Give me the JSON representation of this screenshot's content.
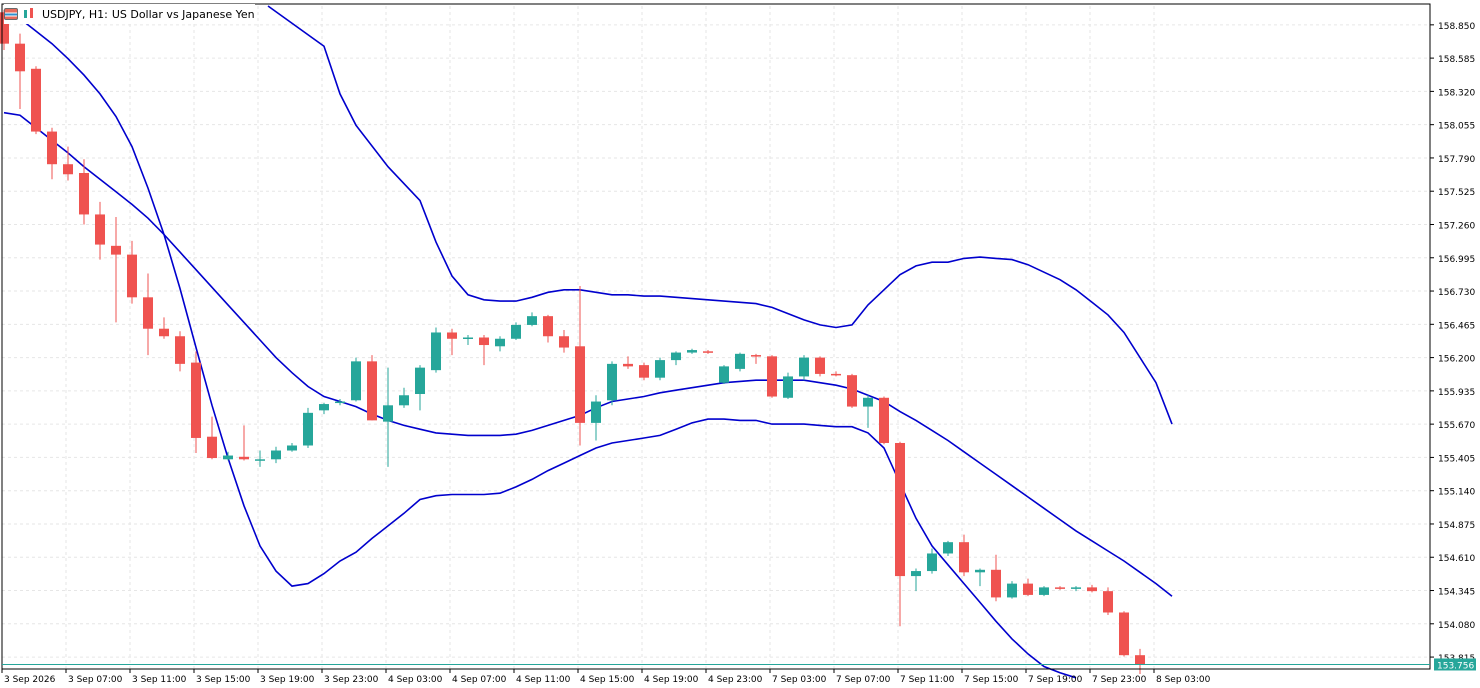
{
  "header": {
    "symbol_label": "USDJPY, H1:",
    "description": "US Dollar vs Japanese Yen",
    "icons": [
      "chart-window-icon",
      "candlestick-mode-icon"
    ]
  },
  "colors": {
    "bull": "#26a69a",
    "bear": "#ef5350",
    "band": "#0000cd",
    "grid": "#e6e6e6",
    "price_line": "#26a69a",
    "axis_text": "#000000"
  },
  "price_badge": "153.756",
  "chart_data": {
    "type": "candlestick",
    "symbol": "USDJPY",
    "timeframe": "H1",
    "y_ticks": [
      "158.850",
      "158.585",
      "158.320",
      "158.055",
      "157.790",
      "157.525",
      "157.260",
      "156.995",
      "156.730",
      "156.465",
      "156.200",
      "155.935",
      "155.670",
      "155.405",
      "155.140",
      "154.875",
      "154.610",
      "154.345",
      "154.080",
      "153.815"
    ],
    "x_labels": [
      "3 Sep 2026",
      "3 Sep 07:00",
      "3 Sep 11:00",
      "3 Sep 15:00",
      "3 Sep 19:00",
      "3 Sep 23:00",
      "4 Sep 03:00",
      "4 Sep 07:00",
      "4 Sep 11:00",
      "4 Sep 15:00",
      "4 Sep 19:00",
      "4 Sep 23:00",
      "7 Sep 03:00",
      "7 Sep 07:00",
      "7 Sep 11:00",
      "7 Sep 15:00",
      "7 Sep 19:00",
      "7 Sep 23:00",
      "8 Sep 03:00"
    ],
    "ylim": [
      153.72,
      159.0
    ],
    "current_price": 153.756,
    "candles": [
      [
        158.95,
        158.97,
        158.65,
        158.7
      ],
      [
        158.7,
        158.78,
        158.18,
        158.48
      ],
      [
        158.5,
        158.52,
        157.98,
        158.0
      ],
      [
        158.0,
        158.03,
        157.62,
        157.74
      ],
      [
        157.74,
        157.88,
        157.61,
        157.66
      ],
      [
        157.67,
        157.78,
        157.26,
        157.34
      ],
      [
        157.34,
        157.44,
        156.98,
        157.1
      ],
      [
        157.09,
        157.32,
        156.48,
        157.02
      ],
      [
        157.02,
        157.13,
        156.63,
        156.68
      ],
      [
        156.68,
        156.87,
        156.22,
        156.43
      ],
      [
        156.43,
        156.52,
        156.35,
        156.37
      ],
      [
        156.37,
        156.41,
        156.09,
        156.15
      ],
      [
        156.16,
        156.25,
        155.44,
        155.56
      ],
      [
        155.57,
        155.73,
        155.39,
        155.4
      ],
      [
        155.39,
        155.45,
        155.38,
        155.42
      ],
      [
        155.41,
        155.66,
        155.38,
        155.39
      ],
      [
        155.38,
        155.46,
        155.33,
        155.39
      ],
      [
        155.39,
        155.49,
        155.36,
        155.46
      ],
      [
        155.46,
        155.52,
        155.45,
        155.5
      ],
      [
        155.5,
        155.8,
        155.48,
        155.76
      ],
      [
        155.78,
        155.84,
        155.75,
        155.83
      ],
      [
        155.84,
        155.87,
        155.82,
        155.85
      ],
      [
        155.86,
        156.2,
        155.85,
        156.17
      ],
      [
        156.17,
        156.22,
        155.7,
        155.7
      ],
      [
        155.69,
        156.12,
        155.33,
        155.82
      ],
      [
        155.82,
        155.96,
        155.8,
        155.9
      ],
      [
        155.91,
        156.14,
        155.78,
        156.12
      ],
      [
        156.1,
        156.44,
        156.08,
        156.4
      ],
      [
        156.4,
        156.43,
        156.22,
        156.35
      ],
      [
        156.35,
        156.38,
        156.3,
        156.36
      ],
      [
        156.36,
        156.38,
        156.14,
        156.3
      ],
      [
        156.29,
        156.37,
        156.25,
        156.35
      ],
      [
        156.35,
        156.48,
        156.34,
        156.46
      ],
      [
        156.46,
        156.56,
        156.45,
        156.53
      ],
      [
        156.53,
        156.54,
        156.32,
        156.37
      ],
      [
        156.37,
        156.42,
        156.24,
        156.28
      ],
      [
        156.29,
        156.77,
        155.5,
        155.68
      ],
      [
        155.68,
        155.9,
        155.54,
        155.85
      ],
      [
        155.86,
        156.17,
        155.82,
        156.15
      ],
      [
        156.15,
        156.21,
        156.11,
        156.13
      ],
      [
        156.14,
        156.16,
        156.02,
        156.04
      ],
      [
        156.04,
        156.2,
        156.02,
        156.18
      ],
      [
        156.18,
        156.25,
        156.14,
        156.24
      ],
      [
        156.24,
        156.27,
        156.23,
        156.26
      ],
      [
        156.25,
        156.26,
        156.23,
        156.24
      ],
      [
        156.0,
        156.14,
        155.99,
        156.13
      ],
      [
        156.11,
        156.24,
        156.09,
        156.23
      ],
      [
        156.22,
        156.23,
        156.15,
        156.21
      ],
      [
        156.21,
        156.22,
        155.88,
        155.89
      ],
      [
        155.88,
        156.08,
        155.87,
        156.05
      ],
      [
        156.05,
        156.22,
        156.02,
        156.2
      ],
      [
        156.2,
        156.21,
        156.05,
        156.07
      ],
      [
        156.07,
        156.09,
        156.05,
        156.06
      ],
      [
        156.06,
        156.07,
        155.8,
        155.81
      ],
      [
        155.81,
        155.9,
        155.64,
        155.88
      ],
      [
        155.88,
        155.89,
        155.51,
        155.52
      ],
      [
        155.52,
        155.53,
        154.06,
        154.46
      ],
      [
        154.46,
        154.52,
        154.34,
        154.5
      ],
      [
        154.5,
        154.68,
        154.48,
        154.64
      ],
      [
        154.64,
        154.74,
        154.62,
        154.73
      ],
      [
        154.73,
        154.79,
        154.46,
        154.49
      ],
      [
        154.49,
        154.52,
        154.38,
        154.51
      ],
      [
        154.51,
        154.63,
        154.26,
        154.29
      ],
      [
        154.29,
        154.42,
        154.28,
        154.4
      ],
      [
        154.4,
        154.44,
        154.3,
        154.31
      ],
      [
        154.31,
        154.38,
        154.3,
        154.37
      ],
      [
        154.37,
        154.38,
        154.35,
        154.36
      ],
      [
        154.36,
        154.38,
        154.34,
        154.37
      ],
      [
        154.37,
        154.39,
        154.33,
        154.34
      ],
      [
        154.34,
        154.37,
        154.15,
        154.17
      ],
      [
        154.17,
        154.18,
        153.82,
        153.83
      ],
      [
        153.83,
        153.88,
        153.68,
        153.756
      ]
    ],
    "bands": {
      "upper": [
        [
          16.5,
          159.0
        ],
        [
          20,
          158.68
        ],
        [
          21,
          158.3
        ],
        [
          22,
          158.05
        ],
        [
          24,
          157.72
        ],
        [
          26,
          157.45
        ],
        [
          27,
          157.12
        ],
        [
          28,
          156.85
        ],
        [
          29,
          156.7
        ],
        [
          30,
          156.66
        ],
        [
          31,
          156.65
        ],
        [
          32,
          156.65
        ],
        [
          33,
          156.68
        ],
        [
          34,
          156.72
        ],
        [
          35,
          156.74
        ],
        [
          36,
          156.74
        ],
        [
          37,
          156.72
        ],
        [
          38,
          156.7
        ],
        [
          39,
          156.7
        ],
        [
          40,
          156.69
        ],
        [
          41,
          156.69
        ],
        [
          42,
          156.68
        ],
        [
          43,
          156.67
        ],
        [
          44,
          156.66
        ],
        [
          45,
          156.65
        ],
        [
          46,
          156.64
        ],
        [
          47,
          156.63
        ],
        [
          48,
          156.6
        ],
        [
          49,
          156.55
        ],
        [
          50,
          156.5
        ],
        [
          51,
          156.46
        ],
        [
          52,
          156.44
        ],
        [
          53,
          156.46
        ],
        [
          54,
          156.62
        ],
        [
          55,
          156.74
        ],
        [
          56,
          156.86
        ],
        [
          57,
          156.93
        ],
        [
          58,
          156.96
        ],
        [
          59,
          156.96
        ],
        [
          60,
          156.99
        ],
        [
          61,
          157.0
        ],
        [
          62,
          156.99
        ],
        [
          63,
          156.98
        ],
        [
          64,
          156.94
        ],
        [
          65,
          156.88
        ],
        [
          66,
          156.82
        ],
        [
          67,
          156.74
        ],
        [
          68,
          156.64
        ],
        [
          69,
          156.54
        ],
        [
          70,
          156.4
        ],
        [
          71,
          156.2
        ],
        [
          72,
          156.0
        ],
        [
          73,
          155.67
        ]
      ],
      "middle": [
        [
          0,
          158.15
        ],
        [
          1,
          158.13
        ],
        [
          2,
          158.03
        ],
        [
          3,
          157.93
        ],
        [
          4,
          157.83
        ],
        [
          5,
          157.72
        ],
        [
          6,
          157.62
        ],
        [
          7,
          157.52
        ],
        [
          8,
          157.42
        ],
        [
          9,
          157.31
        ],
        [
          10,
          157.18
        ],
        [
          11,
          157.04
        ],
        [
          12,
          156.9
        ],
        [
          13,
          156.76
        ],
        [
          14,
          156.62
        ],
        [
          15,
          156.48
        ],
        [
          16,
          156.34
        ],
        [
          17,
          156.2
        ],
        [
          18,
          156.08
        ],
        [
          19,
          155.97
        ],
        [
          20,
          155.89
        ],
        [
          21,
          155.85
        ],
        [
          22,
          155.81
        ],
        [
          23,
          155.75
        ],
        [
          24,
          155.7
        ],
        [
          25,
          155.66
        ],
        [
          26,
          155.63
        ],
        [
          27,
          155.6
        ],
        [
          28,
          155.59
        ],
        [
          29,
          155.58
        ],
        [
          30,
          155.58
        ],
        [
          31,
          155.58
        ],
        [
          32,
          155.59
        ],
        [
          33,
          155.62
        ],
        [
          34,
          155.66
        ],
        [
          35,
          155.7
        ],
        [
          36,
          155.74
        ],
        [
          37,
          155.8
        ],
        [
          38,
          155.85
        ],
        [
          39,
          155.87
        ],
        [
          40,
          155.89
        ],
        [
          41,
          155.92
        ],
        [
          42,
          155.94
        ],
        [
          43,
          155.96
        ],
        [
          44,
          155.98
        ],
        [
          45,
          156.0
        ],
        [
          46,
          156.01
        ],
        [
          47,
          156.02
        ],
        [
          48,
          156.02
        ],
        [
          49,
          156.02
        ],
        [
          50,
          156.02
        ],
        [
          51,
          156.0
        ],
        [
          52,
          155.98
        ],
        [
          53,
          155.95
        ],
        [
          54,
          155.9
        ],
        [
          55,
          155.85
        ],
        [
          56,
          155.77
        ],
        [
          57,
          155.7
        ],
        [
          58,
          155.62
        ],
        [
          59,
          155.54
        ],
        [
          60,
          155.45
        ],
        [
          61,
          155.36
        ],
        [
          62,
          155.27
        ],
        [
          63,
          155.18
        ],
        [
          64,
          155.09
        ],
        [
          65,
          155.0
        ],
        [
          66,
          154.91
        ],
        [
          67,
          154.82
        ],
        [
          68,
          154.74
        ],
        [
          69,
          154.66
        ],
        [
          70,
          154.58
        ],
        [
          71,
          154.49
        ],
        [
          72,
          154.4
        ],
        [
          73,
          154.3
        ]
      ],
      "lower": [
        [
          0,
          158.95
        ],
        [
          1,
          158.9
        ],
        [
          2,
          158.8
        ],
        [
          3,
          158.7
        ],
        [
          4,
          158.58
        ],
        [
          5,
          158.45
        ],
        [
          6,
          158.3
        ],
        [
          7,
          158.12
        ],
        [
          8,
          157.88
        ],
        [
          9,
          157.55
        ],
        [
          10,
          157.18
        ],
        [
          11,
          156.75
        ],
        [
          12,
          156.28
        ],
        [
          13,
          155.82
        ],
        [
          14,
          155.4
        ],
        [
          15,
          155.02
        ],
        [
          16,
          154.7
        ],
        [
          17,
          154.5
        ],
        [
          18,
          154.38
        ],
        [
          19,
          154.4
        ],
        [
          20,
          154.48
        ],
        [
          21,
          154.58
        ],
        [
          22,
          154.65
        ],
        [
          23,
          154.76
        ],
        [
          24,
          154.86
        ],
        [
          25,
          154.96
        ],
        [
          26,
          155.07
        ],
        [
          27,
          155.1
        ],
        [
          28,
          155.11
        ],
        [
          29,
          155.11
        ],
        [
          30,
          155.11
        ],
        [
          31,
          155.12
        ],
        [
          32,
          155.17
        ],
        [
          33,
          155.23
        ],
        [
          34,
          155.3
        ],
        [
          35,
          155.36
        ],
        [
          36,
          155.42
        ],
        [
          37,
          155.48
        ],
        [
          38,
          155.52
        ],
        [
          39,
          155.54
        ],
        [
          40,
          155.56
        ],
        [
          41,
          155.58
        ],
        [
          42,
          155.63
        ],
        [
          43,
          155.68
        ],
        [
          44,
          155.71
        ],
        [
          45,
          155.71
        ],
        [
          46,
          155.7
        ],
        [
          47,
          155.7
        ],
        [
          48,
          155.67
        ],
        [
          49,
          155.67
        ],
        [
          50,
          155.67
        ],
        [
          51,
          155.66
        ],
        [
          52,
          155.65
        ],
        [
          53,
          155.65
        ],
        [
          54,
          155.6
        ],
        [
          55,
          155.48
        ],
        [
          56,
          155.2
        ],
        [
          57,
          154.92
        ],
        [
          58,
          154.7
        ],
        [
          59,
          154.55
        ],
        [
          60,
          154.4
        ],
        [
          61,
          154.25
        ],
        [
          62,
          154.1
        ],
        [
          63,
          153.96
        ],
        [
          64,
          153.84
        ],
        [
          65,
          153.74
        ],
        [
          66,
          153.69
        ],
        [
          67,
          153.65
        ]
      ]
    },
    "grid": true,
    "legend": "none"
  }
}
